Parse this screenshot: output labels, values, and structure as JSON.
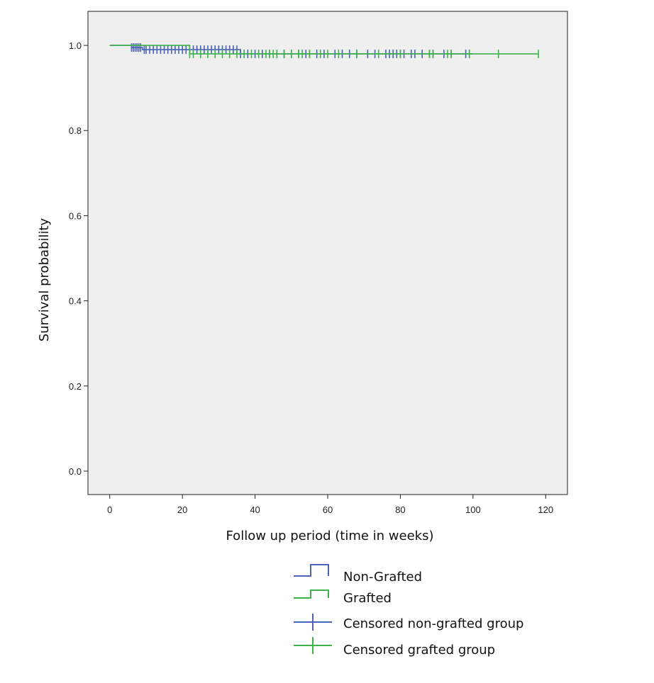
{
  "chart_data": {
    "type": "line",
    "subtype": "kaplan-meier",
    "title": "",
    "xlabel": "Follow up period (time in weeks)",
    "ylabel": "Survival probability",
    "xlim": [
      -6,
      126
    ],
    "ylim": [
      -0.055,
      1.08
    ],
    "xticks": [
      0,
      20,
      40,
      60,
      80,
      100,
      120
    ],
    "yticks": [
      0.0,
      0.2,
      0.4,
      0.6,
      0.8,
      1.0
    ],
    "xtick_labels": [
      "0",
      "20",
      "40",
      "60",
      "80",
      "100",
      "120"
    ],
    "ytick_labels": [
      "0.0",
      "0.2",
      "0.4",
      "0.6",
      "0.8",
      "1.0"
    ],
    "grid": false,
    "plot_background": "#efefef",
    "legend_position": "bottom",
    "series": [
      {
        "name": "Non-Grafted",
        "color": "#4a63b5",
        "steps": [
          [
            0,
            1.0
          ],
          [
            6,
            0.995
          ],
          [
            9,
            0.99
          ],
          [
            36,
            0.98
          ],
          [
            100,
            0.98
          ]
        ],
        "censored": [
          6,
          6.5,
          7,
          7.5,
          8,
          8.5,
          9.5,
          10,
          11,
          12,
          13,
          14,
          15,
          16,
          17,
          18,
          19,
          20,
          21,
          22,
          23,
          24,
          25,
          26,
          27,
          28,
          29,
          30,
          31,
          32,
          33,
          34,
          35,
          36,
          37,
          38,
          40,
          41,
          42,
          44,
          46,
          48,
          50,
          52,
          54,
          55,
          57,
          59,
          62,
          64,
          66,
          68,
          71,
          73,
          76,
          77,
          78,
          79,
          80,
          81,
          83,
          84,
          86,
          88,
          89,
          92,
          94,
          98,
          99
        ]
      },
      {
        "name": "Grafted",
        "color": "#3db34a",
        "steps": [
          [
            0,
            1.0
          ],
          [
            22,
            0.98
          ],
          [
            118,
            0.98
          ]
        ],
        "censored": [
          22,
          23,
          25,
          27,
          29,
          31,
          33,
          35,
          37,
          39,
          41,
          43,
          44,
          45,
          46,
          48,
          50,
          52,
          53,
          55,
          58,
          60,
          63,
          68,
          74,
          80,
          88,
          89,
          93,
          94,
          99,
          107,
          118
        ]
      }
    ],
    "legend": [
      {
        "label": "Non-Grafted",
        "kind": "step",
        "color": "#4a63b5"
      },
      {
        "label": "Grafted",
        "kind": "step",
        "color": "#3db34a"
      },
      {
        "label": "Censored non-grafted group",
        "kind": "censor",
        "color": "#4a63b5"
      },
      {
        "label": "Censored grafted group",
        "kind": "censor",
        "color": "#3db34a"
      }
    ]
  }
}
